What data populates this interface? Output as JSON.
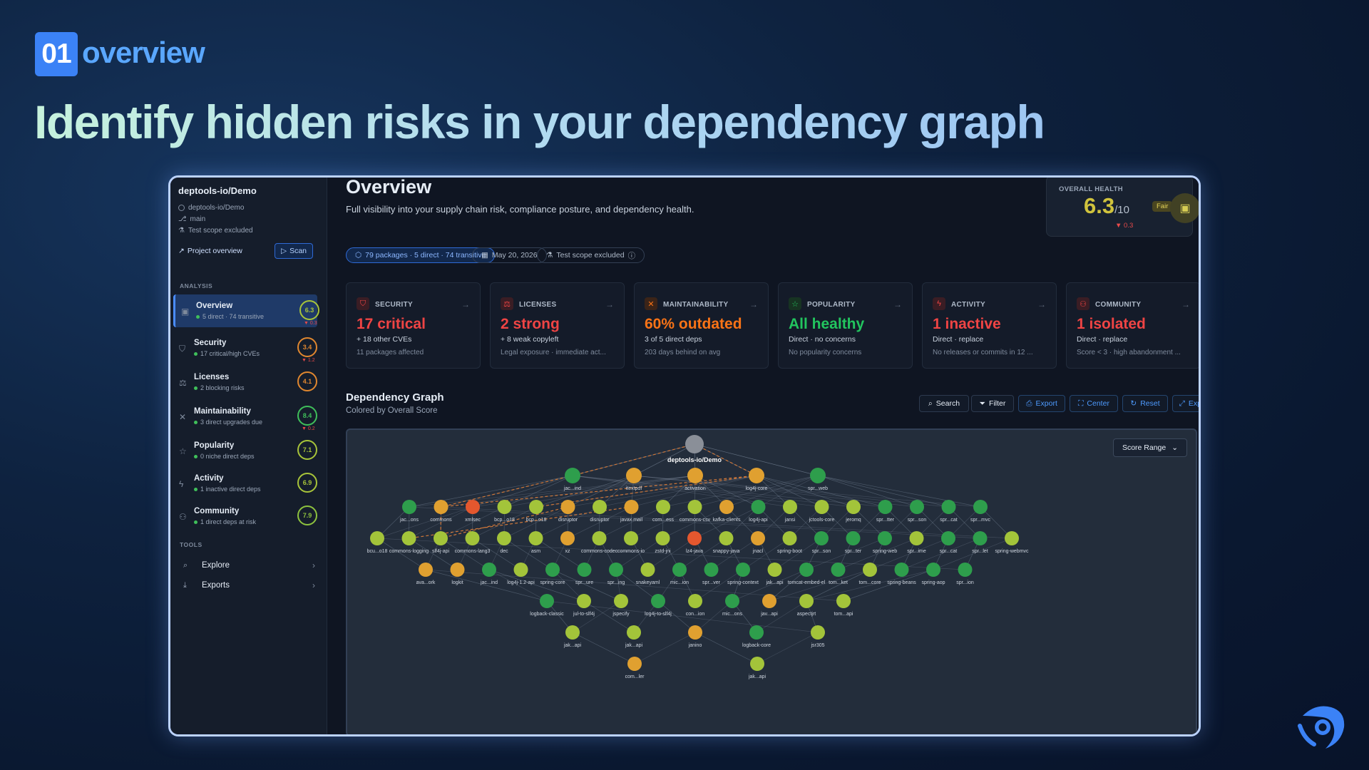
{
  "hero": {
    "badge": "01",
    "badge_label": "overview",
    "headline": "Identify hidden risks in your dependency graph"
  },
  "sidebar": {
    "project": "deptools-io/Demo",
    "repo": "deptools-io/Demo",
    "branch": "main",
    "scope": "Test scope excluded",
    "project_link": "Project overview",
    "scan_label": "Scan",
    "analysis_label": "ANALYSIS",
    "tools_label": "TOOLS",
    "items": [
      {
        "label": "Overview",
        "sub": "5 direct · 74 transitive",
        "score": "6.3",
        "delta": "▼ 0.3",
        "color": "#a8c43a",
        "icon": "▣"
      },
      {
        "label": "Security",
        "sub": "17 critical/high CVEs",
        "score": "3.4",
        "delta": "▼ 1.2",
        "color": "#e0872f",
        "icon": "⛉"
      },
      {
        "label": "Licenses",
        "sub": "2 blocking risks",
        "score": "4.1",
        "delta": "",
        "color": "#e0872f",
        "icon": "⚖"
      },
      {
        "label": "Maintainability",
        "sub": "3 direct upgrades due",
        "score": "8.4",
        "delta": "▼ 0.2",
        "color": "#3fbf5a",
        "icon": "✕"
      },
      {
        "label": "Popularity",
        "sub": "0 niche direct deps",
        "score": "7.1",
        "delta": "",
        "color": "#a8c43a",
        "icon": "☆"
      },
      {
        "label": "Activity",
        "sub": "1 inactive direct deps",
        "score": "6.9",
        "delta": "",
        "color": "#a8c43a",
        "icon": "ϟ"
      },
      {
        "label": "Community",
        "sub": "1 direct deps at risk",
        "score": "7.9",
        "delta": "",
        "color": "#8dc23e",
        "icon": "⚇"
      }
    ],
    "tools": [
      {
        "label": "Explore",
        "icon": "⌕"
      },
      {
        "label": "Exports",
        "icon": "⤓"
      }
    ]
  },
  "main": {
    "title": "Overview",
    "subtitle": "Full visibility into your supply chain risk, compliance posture, and dependency health.",
    "health": {
      "label": "OVERALL HEALTH",
      "score": "6.3",
      "denominator": "/10",
      "rating": "Fair",
      "delta": "▼ 0.3"
    },
    "chips": {
      "packages": "79 packages · 5 direct · 74 transitive",
      "date": "May 20, 2026",
      "scope": "Test scope excluded"
    },
    "cards": [
      {
        "name": "SECURITY",
        "big": "17 critical",
        "l1": "+ 18 other CVEs",
        "l2": "11 packages affected",
        "color": "#ef4444",
        "bg": "#3a1d24",
        "icon": "⛉"
      },
      {
        "name": "LICENSES",
        "big": "2 strong",
        "l1": "+ 8 weak copyleft",
        "l2": "Legal exposure · immediate act...",
        "color": "#ef4444",
        "bg": "#3a1d24",
        "icon": "⚖"
      },
      {
        "name": "MAINTAINABILITY",
        "big": "60% outdated",
        "l1": "3 of 5 direct deps",
        "l2": "203 days behind on avg",
        "color": "#f97316",
        "bg": "#3b2418",
        "icon": "✕"
      },
      {
        "name": "POPULARITY",
        "big": "All healthy",
        "l1": "Direct · no concerns",
        "l2": "No popularity concerns",
        "color": "#22c55e",
        "bg": "#173322",
        "icon": "☆"
      },
      {
        "name": "ACTIVITY",
        "big": "1 inactive",
        "l1": "Direct · replace",
        "l2": "No releases or commits in 12 ...",
        "color": "#ef4444",
        "bg": "#3a1d24",
        "icon": "ϟ"
      },
      {
        "name": "COMMUNITY",
        "big": "1 isolated",
        "l1": "Direct · replace",
        "l2": "Score < 3 · high abandonment ...",
        "color": "#ef4444",
        "bg": "#3a1d24",
        "icon": "⚇"
      }
    ],
    "graph": {
      "title": "Dependency Graph",
      "subtitle": "Colored by Overall Score",
      "score_range": "Score Range",
      "toolbar": [
        {
          "label": "Search",
          "icon": "⌕"
        },
        {
          "label": "Filter",
          "icon": "⏷"
        },
        {
          "label": "Export",
          "icon": "⎙"
        },
        {
          "label": "Center",
          "icon": "⛶"
        },
        {
          "label": "Reset",
          "icon": "↻"
        },
        {
          "label": "Expand",
          "icon": "⤢"
        }
      ],
      "colors": {
        "green": "#2e9e4c",
        "lime": "#a3c43a",
        "orange": "#e0a030",
        "red": "#e4572e",
        "gray": "#8a8f98"
      },
      "rows": [
        [
          [
            "deptools-io/Demo",
            "gray"
          ]
        ],
        [
          [
            "jac...ind",
            "green"
          ],
          [
            "itextpdf",
            "orange"
          ],
          [
            "activation",
            "orange"
          ],
          [
            "log4j-core",
            "orange"
          ],
          [
            "spr...web",
            "green"
          ]
        ],
        [
          [
            "jac...ons",
            "green"
          ],
          [
            "commons",
            "orange"
          ],
          [
            "xmlsec",
            "red"
          ],
          [
            "bcp...o18",
            "lime"
          ],
          [
            "bcp...o18",
            "lime"
          ],
          [
            "disruptor",
            "orange"
          ],
          [
            "disruptor",
            "lime"
          ],
          [
            "javax.mail",
            "orange"
          ],
          [
            "com...ess",
            "lime"
          ],
          [
            "commons-csv",
            "lime"
          ],
          [
            "kafka-clients",
            "orange"
          ],
          [
            "log4j-api",
            "green"
          ],
          [
            "jansi",
            "lime"
          ],
          [
            "jctools-core",
            "lime"
          ],
          [
            "jeromq",
            "lime"
          ],
          [
            "spr...tter",
            "green"
          ],
          [
            "spr...son",
            "green"
          ],
          [
            "spr...cat",
            "green"
          ],
          [
            "spr...mvc",
            "green"
          ]
        ],
        [
          [
            "bcu...o18",
            "lime"
          ],
          [
            "commons-logging",
            "lime"
          ],
          [
            "slf4j-api",
            "lime"
          ],
          [
            "commons-lang3",
            "lime"
          ],
          [
            "dec",
            "lime"
          ],
          [
            "asm",
            "lime"
          ],
          [
            "xz",
            "orange"
          ],
          [
            "commons-codec",
            "lime"
          ],
          [
            "commons-io",
            "lime"
          ],
          [
            "zstd-jni",
            "lime"
          ],
          [
            "lz4-java",
            "red"
          ],
          [
            "snappy-java",
            "lime"
          ],
          [
            "jnacl",
            "orange"
          ],
          [
            "spring-boot",
            "lime"
          ],
          [
            "spr...son",
            "green"
          ],
          [
            "spr...ter",
            "green"
          ],
          [
            "spring-web",
            "green"
          ],
          [
            "spr...ime",
            "lime"
          ],
          [
            "spr...cat",
            "green"
          ],
          [
            "spr...let",
            "green"
          ],
          [
            "spring-webmvc",
            "lime"
          ]
        ],
        [
          [
            "ava...ork",
            "orange"
          ],
          [
            "logkit",
            "orange"
          ],
          [
            "jac...ind",
            "green"
          ],
          [
            "log4j-1.2-api",
            "lime"
          ],
          [
            "spring-core",
            "green"
          ],
          [
            "spr...ure",
            "green"
          ],
          [
            "spr...ing",
            "green"
          ],
          [
            "snakeyaml",
            "lime"
          ],
          [
            "mic...ion",
            "green"
          ],
          [
            "spr...ver",
            "green"
          ],
          [
            "spring-context",
            "green"
          ],
          [
            "jak...api",
            "lime"
          ],
          [
            "tomcat-embed-el",
            "green"
          ],
          [
            "tom...ket",
            "green"
          ],
          [
            "tom...core",
            "lime"
          ],
          [
            "spring-beans",
            "green"
          ],
          [
            "spring-aop",
            "green"
          ],
          [
            "spr...ion",
            "green"
          ]
        ],
        [
          [
            "logback-classic",
            "green"
          ],
          [
            "jul-to-slf4j",
            "lime"
          ],
          [
            "jspecify",
            "lime"
          ],
          [
            "log4j-to-slf4j",
            "green"
          ],
          [
            "con...ion",
            "lime"
          ],
          [
            "mic...ons",
            "green"
          ],
          [
            "jav...api",
            "orange"
          ],
          [
            "aspectjrt",
            "lime"
          ],
          [
            "tom...api",
            "lime"
          ]
        ],
        [
          [
            "jak...api",
            "lime"
          ],
          [
            "jak...api",
            "lime"
          ],
          [
            "janino",
            "orange"
          ],
          [
            "logback-core",
            "green"
          ],
          [
            "jsr305",
            "lime"
          ]
        ],
        [
          [
            "com...ler",
            "orange"
          ],
          [
            "jak...api",
            "lime"
          ]
        ]
      ]
    }
  }
}
